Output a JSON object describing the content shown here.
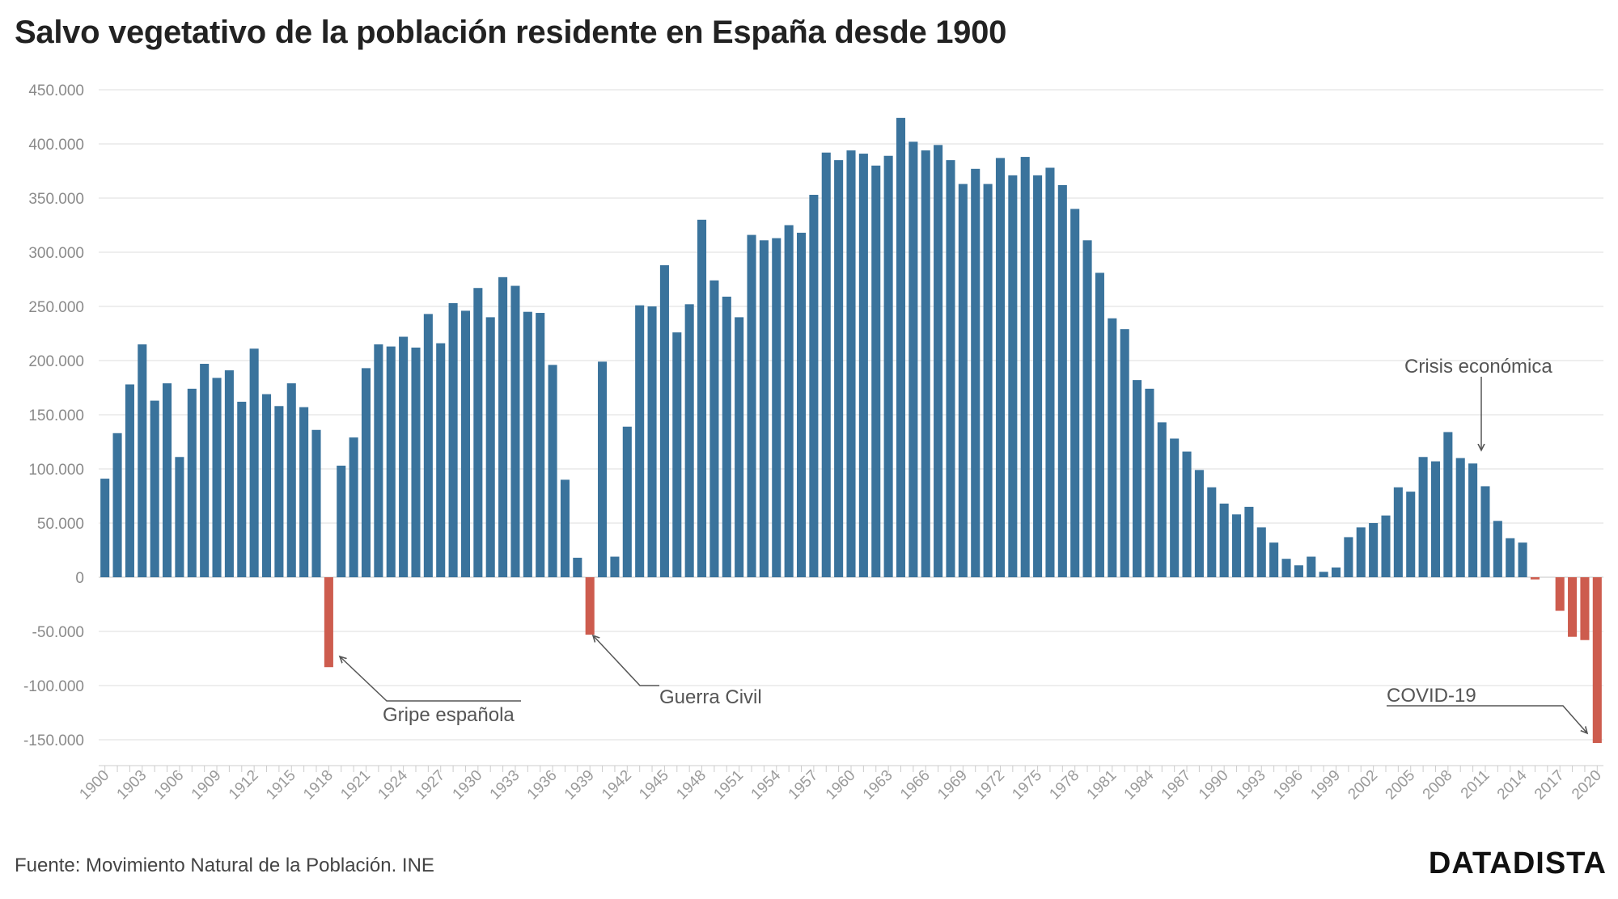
{
  "header": {
    "title": "Salvo vegetativo de la población residente en España desde 1900"
  },
  "footer": {
    "source": "Fuente: Movimiento Natural de la Población. INE",
    "brand": "DATADISTA"
  },
  "colors": {
    "positive": "#3a739c",
    "negative": "#cd5c4e",
    "grid": "#e4e4e4",
    "axis": "#cccccc",
    "annotation": "#555555"
  },
  "chart_data": {
    "type": "bar",
    "title": "Salvo vegetativo de la población residente en España desde 1900",
    "xlabel": "",
    "ylabel": "",
    "ylim": [
      -150000,
      450000
    ],
    "yticks": [
      450000,
      400000,
      350000,
      300000,
      250000,
      200000,
      150000,
      100000,
      50000,
      0,
      -50000,
      -100000,
      -150000
    ],
    "ytick_labels": [
      "450.000",
      "400.000",
      "350.000",
      "300.000",
      "250.000",
      "200.000",
      "150.000",
      "100.000",
      "50.000",
      "0",
      "-50.000",
      "-100.000",
      "-150.000"
    ],
    "grid": true,
    "categories": [
      1900,
      1901,
      1902,
      1903,
      1904,
      1905,
      1906,
      1907,
      1908,
      1909,
      1910,
      1911,
      1912,
      1913,
      1914,
      1915,
      1916,
      1917,
      1918,
      1919,
      1920,
      1921,
      1922,
      1923,
      1924,
      1925,
      1926,
      1927,
      1928,
      1929,
      1930,
      1931,
      1932,
      1933,
      1934,
      1935,
      1936,
      1937,
      1938,
      1939,
      1940,
      1941,
      1942,
      1943,
      1944,
      1945,
      1946,
      1947,
      1948,
      1949,
      1950,
      1951,
      1952,
      1953,
      1954,
      1955,
      1956,
      1957,
      1958,
      1959,
      1960,
      1961,
      1962,
      1963,
      1964,
      1965,
      1966,
      1967,
      1968,
      1969,
      1970,
      1971,
      1972,
      1973,
      1974,
      1975,
      1976,
      1977,
      1978,
      1979,
      1980,
      1981,
      1982,
      1983,
      1984,
      1985,
      1986,
      1987,
      1988,
      1989,
      1990,
      1991,
      1992,
      1993,
      1994,
      1995,
      1996,
      1997,
      1998,
      1999,
      2000,
      2001,
      2002,
      2003,
      2004,
      2005,
      2006,
      2007,
      2008,
      2009,
      2010,
      2011,
      2012,
      2013,
      2014,
      2015,
      2016,
      2017,
      2018,
      2019,
      2020
    ],
    "xtick_labels": [
      "1900",
      "1903",
      "1906",
      "1909",
      "1912",
      "1915",
      "1918",
      "1921",
      "1924",
      "1927",
      "1930",
      "1933",
      "1936",
      "1939",
      "1942",
      "1945",
      "1948",
      "1951",
      "1954",
      "1957",
      "1960",
      "1963",
      "1966",
      "1969",
      "1972",
      "1975",
      "1978",
      "1981",
      "1984",
      "1987",
      "1990",
      "1993",
      "1996",
      "1999",
      "2002",
      "2005",
      "2008",
      "2011",
      "2014",
      "2017",
      "2020"
    ],
    "values": [
      91000,
      133000,
      178000,
      215000,
      163000,
      179000,
      111000,
      174000,
      197000,
      184000,
      191000,
      162000,
      211000,
      169000,
      158000,
      179000,
      157000,
      136000,
      -83000,
      103000,
      129000,
      193000,
      215000,
      213000,
      222000,
      212000,
      243000,
      216000,
      253000,
      246000,
      267000,
      240000,
      277000,
      269000,
      245000,
      244000,
      196000,
      90000,
      18000,
      -53000,
      199000,
      19000,
      139000,
      251000,
      250000,
      288000,
      226000,
      252000,
      330000,
      274000,
      259000,
      240000,
      316000,
      311000,
      313000,
      325000,
      318000,
      353000,
      392000,
      385000,
      394000,
      391000,
      380000,
      389000,
      424000,
      402000,
      394000,
      399000,
      385000,
      363000,
      377000,
      363000,
      387000,
      371000,
      388000,
      371000,
      378000,
      362000,
      340000,
      311000,
      281000,
      239000,
      229000,
      182000,
      174000,
      143000,
      128000,
      116000,
      99000,
      83000,
      68000,
      58000,
      65000,
      46000,
      32000,
      17000,
      11000,
      19000,
      5000,
      9000,
      37000,
      46000,
      50000,
      57000,
      83000,
      79000,
      111000,
      107000,
      134000,
      110000,
      105000,
      84000,
      52000,
      36000,
      32000,
      -2000,
      0,
      -31000,
      -55000,
      -58000,
      -153000
    ],
    "annotations": [
      {
        "label": "Gripe española",
        "year": 1918
      },
      {
        "label": "Guerra Civil",
        "year": 1939
      },
      {
        "label": "Crisis económica",
        "year": 2011
      },
      {
        "label": "COVID-19",
        "year": 2020
      }
    ]
  }
}
